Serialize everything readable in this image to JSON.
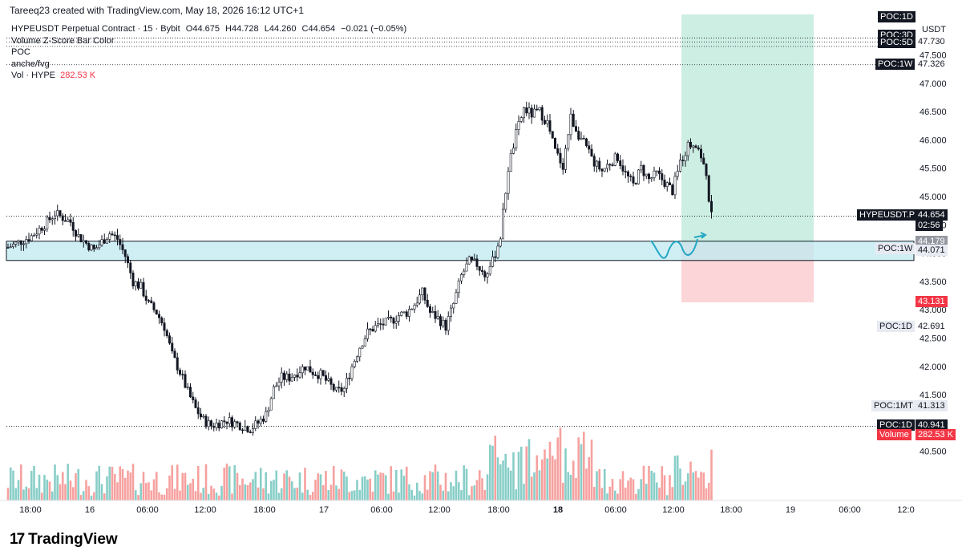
{
  "header": {
    "creator": "Tareeq23 created with TradingView.com, May 18, 2026 16:12 UTC+1"
  },
  "legend": {
    "symbol_line": "HYPEUSDT Perpetual Contract · 15 · Bybit",
    "open": "O44.675",
    "high": "H44.728",
    "low": "L44.260",
    "close": "C44.654",
    "change": "−0.021 (−0.05%)",
    "indicator1": "Volume Z-Score Bar Color",
    "indicator2": "POC",
    "indicator3": "anche/fvg",
    "vol_label": "Vol · HYPE",
    "vol_value": "282.53 K"
  },
  "brand": {
    "logo": "17",
    "name": "TradingView"
  },
  "colors": {
    "up": "#26a69a",
    "down": "#ef5350",
    "candle": "#131722",
    "zone": "#bfe9f2",
    "target": "#cdeee3",
    "stop": "#fbd5d7",
    "price_accent": "#f23645"
  },
  "chart_data": {
    "type": "candlestick",
    "symbol": "HYPEUSDT",
    "interval": "15",
    "currency": "USDT",
    "ylim": [
      39.75,
      47.95
    ],
    "y_ticks": [
      "40.500",
      "41.000",
      "41.500",
      "42.000",
      "42.500",
      "43.000",
      "43.500",
      "44.000",
      "44.500",
      "45.000",
      "45.500",
      "46.000",
      "46.500",
      "47.000",
      "47.500"
    ],
    "x_ticks": [
      "18:00",
      "16",
      "06:00",
      "12:00",
      "18:00",
      "17",
      "06:00",
      "12:00",
      "18:00",
      "18",
      "06:00",
      "12:00",
      "18:00",
      "19",
      "06:00",
      "12:0"
    ],
    "close_path": [
      [
        0,
        44.1
      ],
      [
        3,
        44.3
      ],
      [
        5,
        44.55
      ],
      [
        6,
        44.7
      ],
      [
        8,
        44.55
      ],
      [
        9,
        44.3
      ],
      [
        11,
        44.05
      ],
      [
        13,
        44.35
      ],
      [
        14,
        44.25
      ],
      [
        15,
        43.95
      ],
      [
        16,
        43.5
      ],
      [
        17,
        43.4
      ],
      [
        18,
        43.1
      ],
      [
        19,
        42.95
      ],
      [
        20,
        42.7
      ],
      [
        21,
        42.2
      ],
      [
        22,
        41.9
      ],
      [
        23,
        41.55
      ],
      [
        24,
        41.25
      ],
      [
        25,
        41.05
      ],
      [
        26,
        40.95
      ],
      [
        28,
        41.05
      ],
      [
        29,
        41.0
      ],
      [
        31,
        40.9
      ],
      [
        32,
        41.0
      ],
      [
        33,
        41.15
      ],
      [
        34,
        41.6
      ],
      [
        35,
        41.8
      ],
      [
        36,
        41.8
      ],
      [
        37,
        41.9
      ],
      [
        38,
        42.0
      ],
      [
        39,
        41.9
      ],
      [
        40,
        41.85
      ],
      [
        41,
        41.7
      ],
      [
        42,
        41.55
      ],
      [
        43,
        41.6
      ],
      [
        44,
        42.0
      ],
      [
        45,
        42.35
      ],
      [
        46,
        42.6
      ],
      [
        47,
        42.7
      ],
      [
        48,
        42.75
      ],
      [
        49,
        42.8
      ],
      [
        50,
        42.9
      ],
      [
        51,
        42.95
      ],
      [
        52,
        43.1
      ],
      [
        53,
        43.3
      ],
      [
        54,
        42.95
      ],
      [
        55,
        42.85
      ],
      [
        56,
        42.7
      ],
      [
        57,
        43.1
      ],
      [
        58,
        43.6
      ],
      [
        59,
        43.85
      ],
      [
        60,
        43.8
      ],
      [
        61,
        43.6
      ],
      [
        62,
        43.85
      ],
      [
        63,
        44.3
      ],
      [
        64,
        45.5
      ],
      [
        65,
        46.1
      ],
      [
        66,
        46.55
      ],
      [
        67,
        46.45
      ],
      [
        68,
        46.5
      ],
      [
        69,
        46.3
      ],
      [
        70,
        45.8
      ],
      [
        71,
        45.55
      ],
      [
        72,
        46.4
      ],
      [
        73,
        46.1
      ],
      [
        74,
        45.85
      ],
      [
        75,
        45.6
      ],
      [
        76,
        45.45
      ],
      [
        77,
        45.6
      ],
      [
        78,
        45.7
      ],
      [
        79,
        45.4
      ],
      [
        80,
        45.2
      ],
      [
        81,
        45.5
      ],
      [
        82,
        45.3
      ],
      [
        83,
        45.4
      ],
      [
        84,
        45.25
      ],
      [
        85,
        45.1
      ],
      [
        86,
        45.6
      ],
      [
        87,
        45.9
      ],
      [
        88,
        45.95
      ],
      [
        89,
        45.6
      ],
      [
        90,
        44.65
      ]
    ],
    "volume": {
      "last": "282.53K",
      "note": "volume histogram, colored by candle direction"
    },
    "poc_levels": [
      {
        "label": "POC:1D",
        "value": "47.8"
      },
      {
        "label": "POC:3D",
        "value": "47.730"
      },
      {
        "label": "POC:5D",
        "value": "47.65"
      },
      {
        "label": "POC:1W",
        "value": "47.326"
      },
      {
        "label": "POC:1W",
        "value": "44.071"
      },
      {
        "label": "POC:1D",
        "value": "42.691"
      },
      {
        "label": "POC:1MT",
        "value": "41.313"
      },
      {
        "label": "POC:1D",
        "value": "40.941"
      }
    ],
    "price_labels": {
      "last_name": "HYPEUSDT.P",
      "last": "44.654",
      "countdown": "02:56",
      "entry": "44.179",
      "stop": "43.131",
      "volume_name": "Volume",
      "volume_value": "282.53 K"
    },
    "position": {
      "entry": 44.179,
      "stop": 43.131,
      "target": 47.95
    },
    "support_zone": [
      43.87,
      44.21
    ]
  }
}
